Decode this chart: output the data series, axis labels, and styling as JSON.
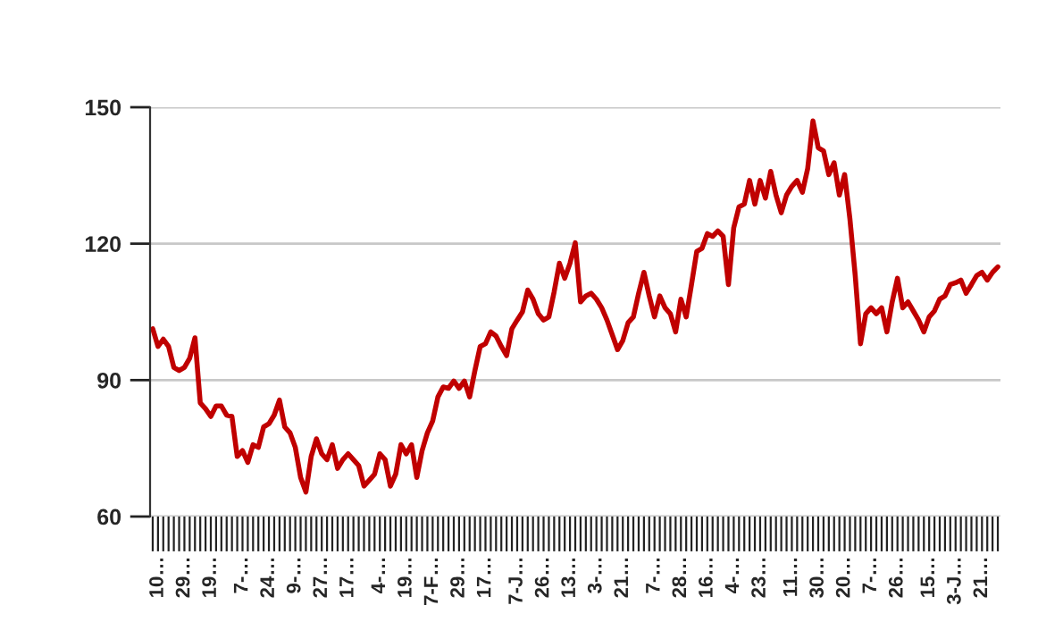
{
  "chart_data": {
    "type": "line",
    "categories": [
      null,
      "10…",
      null,
      null,
      null,
      null,
      "29…",
      null,
      null,
      null,
      null,
      "19…",
      null,
      null,
      null,
      null,
      null,
      "7-…",
      null,
      null,
      null,
      null,
      "24…",
      null,
      null,
      null,
      null,
      "9-…",
      null,
      null,
      null,
      null,
      "27…",
      null,
      null,
      null,
      null,
      "17…",
      null,
      null,
      null,
      null,
      null,
      "4-…",
      null,
      null,
      null,
      null,
      "19…",
      null,
      null,
      null,
      null,
      "7-F…",
      null,
      null,
      null,
      null,
      "29…",
      null,
      null,
      null,
      null,
      "17…",
      null,
      null,
      null,
      null,
      null,
      "7-J…",
      null,
      null,
      null,
      null,
      "26…",
      null,
      null,
      null,
      null,
      "13…",
      null,
      null,
      null,
      null,
      "3-…",
      null,
      null,
      null,
      null,
      "21…",
      null,
      null,
      null,
      null,
      null,
      "7-…",
      null,
      null,
      null,
      null,
      "28…",
      null,
      null,
      null,
      null,
      "16…",
      null,
      null,
      null,
      null,
      "4-…",
      null,
      null,
      null,
      null,
      "23…",
      null,
      null,
      null,
      null,
      null,
      "11…",
      null,
      null,
      null,
      null,
      "30…",
      null,
      null,
      null,
      null,
      "20…",
      null,
      null,
      null,
      null,
      "7-…",
      null,
      null,
      null,
      null,
      "26…",
      null,
      null,
      null,
      null,
      null,
      "15…",
      null,
      null,
      null,
      null,
      "3-J…",
      null,
      null,
      null,
      null,
      "21…",
      null,
      null,
      null
    ],
    "series": [
      {
        "color": "#c00000",
        "values": [
          101.3,
          97.4,
          99,
          97.4,
          92.8,
          92.1,
          92.8,
          94.8,
          99.3,
          85,
          83.7,
          82,
          84.3,
          84.3,
          82.3,
          82,
          73.2,
          74.5,
          71.9,
          75.8,
          75.2,
          79.7,
          80.4,
          82.3,
          85.6,
          79.7,
          78.4,
          75.2,
          68.6,
          65.4,
          73.2,
          77.1,
          73.8,
          72.5,
          75.8,
          70.6,
          72.5,
          73.8,
          72.5,
          71.2,
          66.7,
          68,
          69.3,
          73.8,
          72.5,
          66.7,
          69.3,
          75.8,
          73.8,
          75.8,
          68.6,
          74.5,
          78.4,
          81,
          86.3,
          88.5,
          88.2,
          89.8,
          88.2,
          89.8,
          86.3,
          92.1,
          97.4,
          98,
          100.6,
          99.7,
          97.4,
          95.4,
          101.3,
          103.2,
          105,
          109.8,
          107.8,
          104.6,
          103.2,
          103.9,
          109.4,
          115.7,
          112.4,
          115.7,
          120.2,
          107.2,
          108.5,
          109.1,
          107.8,
          105.9,
          103.2,
          100,
          96.7,
          98.7,
          102.6,
          103.9,
          109.1,
          113.7,
          108.5,
          103.9,
          108.5,
          105.9,
          104.6,
          100.6,
          107.8,
          103.9,
          111,
          118.3,
          119,
          122.2,
          121.6,
          122.8,
          121.6,
          111,
          123.5,
          128.1,
          128.7,
          133.9,
          128.7,
          133.9,
          130,
          135.9,
          130.7,
          126.8,
          130.7,
          132.6,
          133.9,
          131.3,
          136.5,
          147,
          141.1,
          140.4,
          135.2,
          137.8,
          130.7,
          135.2,
          125.4,
          113,
          98,
          104.6,
          105.9,
          104.6,
          105.9,
          100.6,
          107.2,
          112.4,
          105.9,
          107.2,
          105.2,
          103.2,
          100.6,
          103.9,
          105.2,
          107.8,
          108.5,
          111,
          111.4,
          112,
          109.1,
          111,
          113,
          113.7,
          112,
          113.7,
          114.9
        ]
      }
    ],
    "ylim": [
      60,
      150
    ],
    "yticks": [
      60,
      90,
      120,
      150
    ],
    "grid": "y",
    "marker": "none",
    "line_style": "solid"
  }
}
